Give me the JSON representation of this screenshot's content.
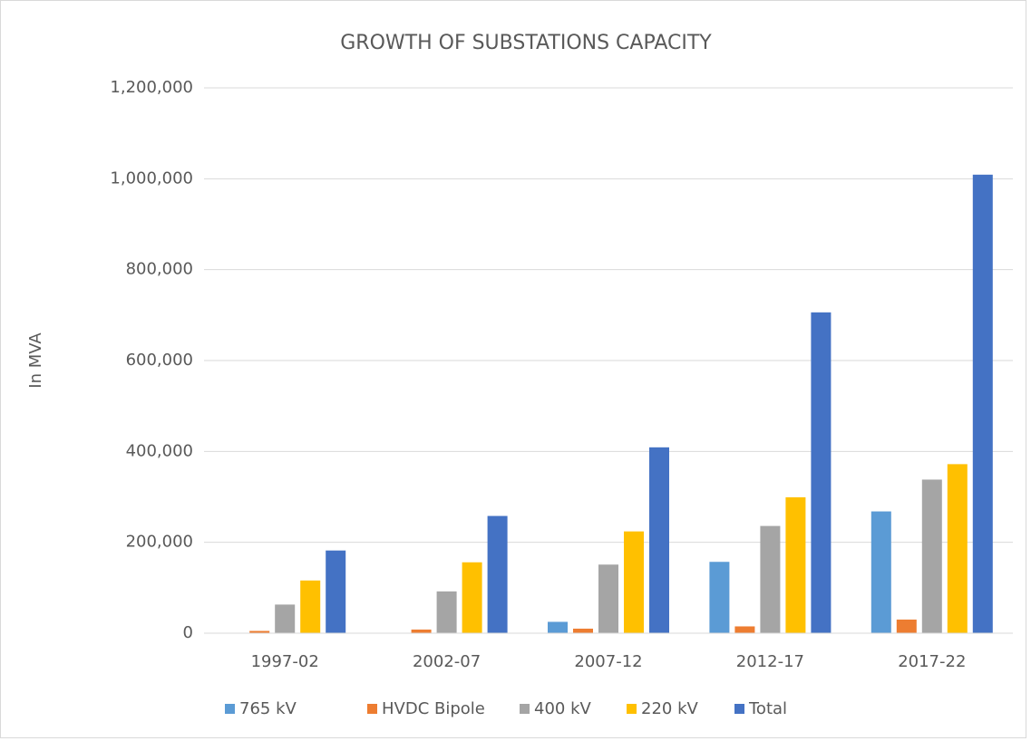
{
  "chart_data": {
    "type": "bar",
    "title": "GROWTH OF SUBSTATIONS CAPACITY",
    "y_label": "In MVA",
    "categories": [
      "1997-02",
      "2002-07",
      "2007-12",
      "2012-17",
      "2017-22"
    ],
    "series": [
      {
        "name": "765 kV",
        "color": "#5b9bd5",
        "values": [
          0,
          0,
          25000,
          157000,
          268000
        ]
      },
      {
        "name": "HVDC Bipole",
        "color": "#ed7d31",
        "values": [
          5000,
          8000,
          10000,
          15000,
          30000
        ]
      },
      {
        "name": "400 kV",
        "color": "#a5a5a5",
        "values": [
          63000,
          92000,
          151000,
          236000,
          338000
        ]
      },
      {
        "name": "220 kV",
        "color": "#ffc000",
        "values": [
          116000,
          156000,
          224000,
          299000,
          372000
        ]
      },
      {
        "name": "Total",
        "color": "#4472c4",
        "values": [
          182000,
          258000,
          409000,
          706000,
          1009000
        ]
      }
    ],
    "ylim": [
      0,
      1200000
    ],
    "yticks": [
      0,
      {
        "value": 200000,
        "label": "200,000"
      },
      {
        "value": 400000,
        "label": "400,000"
      },
      {
        "value": 600000,
        "label": "600,000"
      },
      {
        "value": 800000,
        "label": "800,000"
      },
      {
        "value": 1000000,
        "label": "1,000,000"
      },
      {
        "value": 1200000,
        "label": "1,200,000"
      }
    ],
    "grid": true,
    "legend": "bottom"
  }
}
